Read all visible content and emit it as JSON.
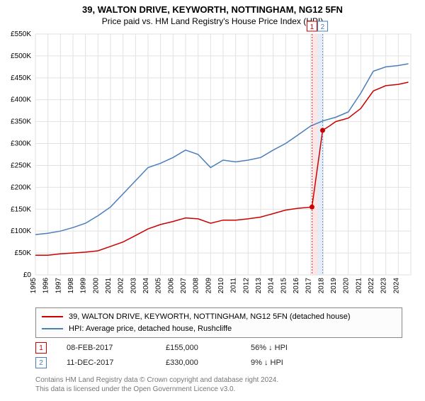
{
  "title": "39, WALTON DRIVE, KEYWORTH, NOTTINGHAM, NG12 5FN",
  "subtitle": "Price paid vs. HM Land Registry's House Price Index (HPI)",
  "chart": {
    "type": "line",
    "background_color": "#ffffff",
    "grid_color": "#e2e2e2",
    "axis_font_size": 10,
    "y_ticks": [
      0,
      50000,
      100000,
      150000,
      200000,
      250000,
      300000,
      350000,
      400000,
      450000,
      500000,
      550000
    ],
    "y_tick_labels": [
      "£0",
      "£50K",
      "£100K",
      "£150K",
      "£200K",
      "£250K",
      "£300K",
      "£350K",
      "£400K",
      "£450K",
      "£500K",
      "£550K"
    ],
    "x_ticks": [
      1995,
      1996,
      1997,
      1998,
      1999,
      2000,
      2001,
      2002,
      2003,
      2004,
      2005,
      2006,
      2007,
      2008,
      2009,
      2010,
      2011,
      2012,
      2013,
      2014,
      2015,
      2016,
      2017,
      2018,
      2019,
      2020,
      2021,
      2022,
      2023,
      2024
    ],
    "xlim": [
      1995,
      2025
    ],
    "ylim": [
      0,
      550000
    ],
    "series": [
      {
        "name": "price_paid",
        "label": "39, WALTON DRIVE, KEYWORTH, NOTTINGHAM, NG12 5FN (detached house)",
        "color": "#cc0000",
        "line_width": 1.5,
        "points": [
          [
            1995,
            45000
          ],
          [
            1996,
            45000
          ],
          [
            1997,
            48000
          ],
          [
            1998,
            50000
          ],
          [
            1999,
            52000
          ],
          [
            2000,
            55000
          ],
          [
            2001,
            65000
          ],
          [
            2002,
            75000
          ],
          [
            2003,
            90000
          ],
          [
            2004,
            105000
          ],
          [
            2005,
            115000
          ],
          [
            2006,
            122000
          ],
          [
            2007,
            130000
          ],
          [
            2008,
            128000
          ],
          [
            2009,
            118000
          ],
          [
            2010,
            125000
          ],
          [
            2011,
            125000
          ],
          [
            2012,
            128000
          ],
          [
            2013,
            132000
          ],
          [
            2014,
            140000
          ],
          [
            2015,
            148000
          ],
          [
            2016,
            152000
          ],
          [
            2017.1,
            155000
          ],
          [
            2017.95,
            330000
          ],
          [
            2018.5,
            340000
          ],
          [
            2019,
            350000
          ],
          [
            2020,
            358000
          ],
          [
            2021,
            380000
          ],
          [
            2022,
            420000
          ],
          [
            2023,
            432000
          ],
          [
            2024,
            435000
          ],
          [
            2024.8,
            440000
          ]
        ]
      },
      {
        "name": "hpi",
        "label": "HPI: Average price, detached house, Rushcliffe",
        "color": "#4a7ebb",
        "line_width": 1.5,
        "points": [
          [
            1995,
            92000
          ],
          [
            1996,
            95000
          ],
          [
            1997,
            100000
          ],
          [
            1998,
            108000
          ],
          [
            1999,
            118000
          ],
          [
            2000,
            135000
          ],
          [
            2001,
            155000
          ],
          [
            2002,
            185000
          ],
          [
            2003,
            215000
          ],
          [
            2004,
            245000
          ],
          [
            2005,
            255000
          ],
          [
            2006,
            268000
          ],
          [
            2007,
            285000
          ],
          [
            2008,
            275000
          ],
          [
            2009,
            245000
          ],
          [
            2010,
            262000
          ],
          [
            2011,
            258000
          ],
          [
            2012,
            262000
          ],
          [
            2013,
            268000
          ],
          [
            2014,
            285000
          ],
          [
            2015,
            300000
          ],
          [
            2016,
            320000
          ],
          [
            2017,
            340000
          ],
          [
            2018,
            352000
          ],
          [
            2019,
            360000
          ],
          [
            2020,
            372000
          ],
          [
            2021,
            415000
          ],
          [
            2022,
            465000
          ],
          [
            2023,
            475000
          ],
          [
            2024,
            478000
          ],
          [
            2024.8,
            482000
          ]
        ]
      }
    ],
    "markers": [
      {
        "id": 1,
        "x": 2017.1,
        "y": 155000,
        "color": "#cc0000",
        "band_color": "#ffe5e5"
      },
      {
        "id": 2,
        "x": 2017.95,
        "y": 330000,
        "color": "#4a7ebb",
        "band_color": "#e5edf7"
      }
    ]
  },
  "legend": {
    "border_color": "#888888"
  },
  "marker_table": [
    {
      "id": 1,
      "color": "#cc0000",
      "date": "08-FEB-2017",
      "price": "£155,000",
      "diff": "56% ↓ HPI"
    },
    {
      "id": 2,
      "color": "#4a7ebb",
      "date": "11-DEC-2017",
      "price": "£330,000",
      "diff": "9% ↓ HPI"
    }
  ],
  "footer_line1": "Contains HM Land Registry data © Crown copyright and database right 2024.",
  "footer_line2": "This data is licensed under the Open Government Licence v3.0."
}
